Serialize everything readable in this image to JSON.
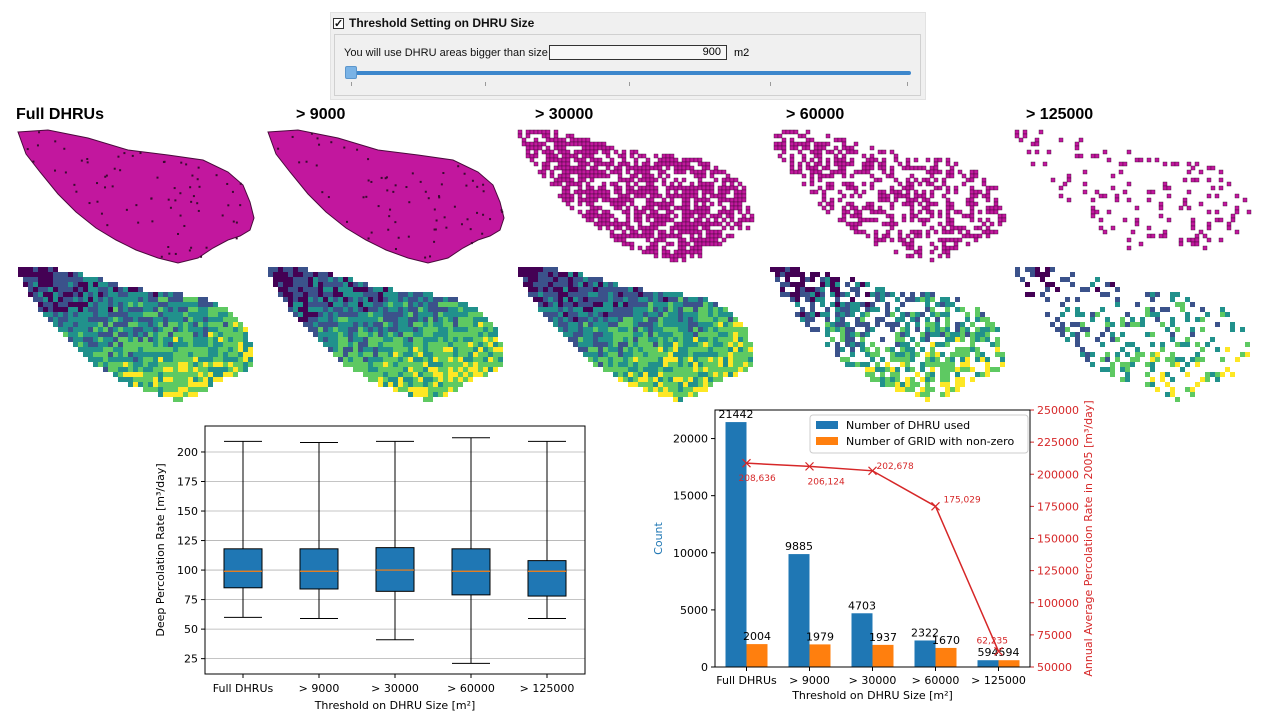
{
  "threshold_panel": {
    "checkbox_checked": true,
    "title": "Threshold Setting on DHRU Size",
    "label": "You will use DHRU areas bigger than size",
    "value": "900",
    "unit": "m2",
    "slider_position_fraction": 0.0
  },
  "maps": {
    "titles": [
      "Full DHRUs",
      "> 9000",
      "> 30000",
      "> 60000",
      "> 125000"
    ],
    "top_row_color": "#c2179e",
    "bottom_row_colormap": [
      "#440154",
      "#3b528b",
      "#21918c",
      "#5ec962",
      "#fde725"
    ]
  },
  "chart_data": [
    {
      "type": "box",
      "xlabel": "Threshold on DHRU Size [m²]",
      "ylabel": "Deep Percolation Rate [m³/day]",
      "categories": [
        "Full DHRUs",
        "> 9000",
        "> 30000",
        "> 60000",
        "> 125000"
      ],
      "ylim": [
        12,
        222
      ],
      "yticks": [
        25,
        50,
        75,
        100,
        125,
        150,
        175,
        200
      ],
      "grid": true,
      "boxes": [
        {
          "min": 60,
          "q1": 85,
          "median": 99,
          "q3": 118,
          "max": 209
        },
        {
          "min": 59,
          "q1": 84,
          "median": 99,
          "q3": 118,
          "max": 208
        },
        {
          "min": 41,
          "q1": 82,
          "median": 100,
          "q3": 119,
          "max": 209
        },
        {
          "min": 21,
          "q1": 79,
          "median": 99,
          "q3": 118,
          "max": 212
        },
        {
          "min": 59,
          "q1": 78,
          "median": 99,
          "q3": 108,
          "max": 209
        }
      ],
      "box_color": "#1f77b4",
      "median_color": "#ff7f0e"
    },
    {
      "type": "bar",
      "xlabel": "Threshold on DHRU Size [m²]",
      "ylabel": "Count",
      "y2label": "Annual Average Percolation Rate in 2005 [m³/day]",
      "categories": [
        "Full DHRUs",
        "> 9000",
        "> 30000",
        "> 60000",
        "> 125000"
      ],
      "ylim": [
        0,
        22500
      ],
      "yticks": [
        0,
        5000,
        10000,
        15000,
        20000
      ],
      "y2lim": [
        50000,
        250000
      ],
      "y2ticks": [
        50000,
        75000,
        100000,
        125000,
        150000,
        175000,
        200000,
        225000,
        250000
      ],
      "legend_position": "top-right",
      "series": [
        {
          "name": "Number of DHRU used",
          "values": [
            21442,
            9885,
            4703,
            2322,
            594
          ],
          "color": "#1f77b4"
        },
        {
          "name": "Number of GRID with non-zero",
          "values": [
            2004,
            1979,
            1937,
            1670,
            594
          ],
          "color": "#ff7f0e"
        }
      ],
      "line_series": {
        "values": [
          208636,
          206124,
          202678,
          175029,
          62235
        ],
        "labels": [
          "208,636",
          "206,124",
          "202,678",
          "175,029",
          "62,235"
        ],
        "color": "#d62728"
      }
    }
  ]
}
